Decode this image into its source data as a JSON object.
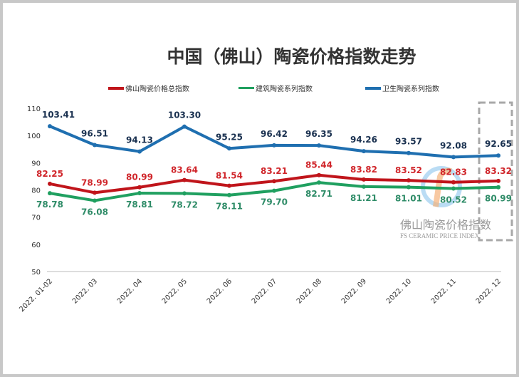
{
  "chart_data": {
    "type": "line",
    "title": "中国（佛山）陶瓷价格指数走势",
    "categories": [
      "2022. 01-02",
      "2022. 03",
      "2022. 04",
      "2022. 05",
      "2022. 06",
      "2022. 07",
      "2022. 08",
      "2022. 09",
      "2022. 10",
      "2022. 11",
      "2022. 12"
    ],
    "ylim": [
      50,
      110
    ],
    "yticks": [
      50,
      60,
      70,
      80,
      90,
      100,
      110
    ],
    "grid": false,
    "legend_position": "top",
    "series": [
      {
        "name": "佛山陶瓷价格总指数",
        "color": "#c0151b",
        "label_color": "#d0262b",
        "labels": "above",
        "values": [
          82.25,
          78.99,
          80.99,
          83.64,
          81.54,
          83.21,
          85.44,
          83.82,
          83.52,
          82.83,
          83.32
        ]
      },
      {
        "name": "建筑陶瓷系列指数",
        "color": "#20a060",
        "label_color": "#2f8c68",
        "labels": "below",
        "values": [
          78.78,
          76.08,
          78.81,
          78.72,
          78.11,
          79.7,
          82.71,
          81.21,
          81.01,
          80.52,
          80.99
        ]
      },
      {
        "name": "卫生陶瓷系列指数",
        "color": "#1f6fb0",
        "label_color": "#1a3150",
        "labels": "above",
        "values": [
          103.41,
          96.51,
          94.13,
          103.3,
          95.25,
          96.42,
          96.35,
          94.26,
          93.57,
          92.08,
          92.65
        ]
      }
    ]
  },
  "watermark": {
    "cn": "佛山陶瓷价格指数",
    "en": "FS CERAMIC PRICE INDEX"
  }
}
